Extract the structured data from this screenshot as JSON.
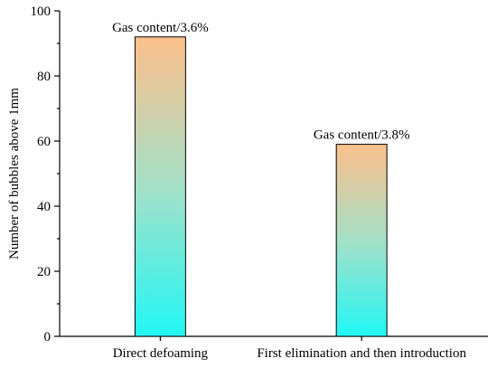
{
  "chart_data": {
    "type": "bar",
    "categories": [
      "Direct defoaming",
      "First elimination and then introduction"
    ],
    "values": [
      92,
      59
    ],
    "data_labels": [
      "Gas content/3.6%",
      "Gas content/3.8%"
    ],
    "title": "",
    "xlabel": "",
    "ylabel": "Number of bubbles above 1mm",
    "ylim": [
      0,
      100
    ],
    "yticks": [
      0,
      20,
      40,
      60,
      80,
      100
    ],
    "grid": false,
    "legend": "none",
    "colors": {
      "bar_gradient_top": "#fcc08c",
      "bar_gradient_mid": "#a6e0c8",
      "bar_gradient_bottom": "#22f7f4",
      "axis": "#000000"
    }
  }
}
